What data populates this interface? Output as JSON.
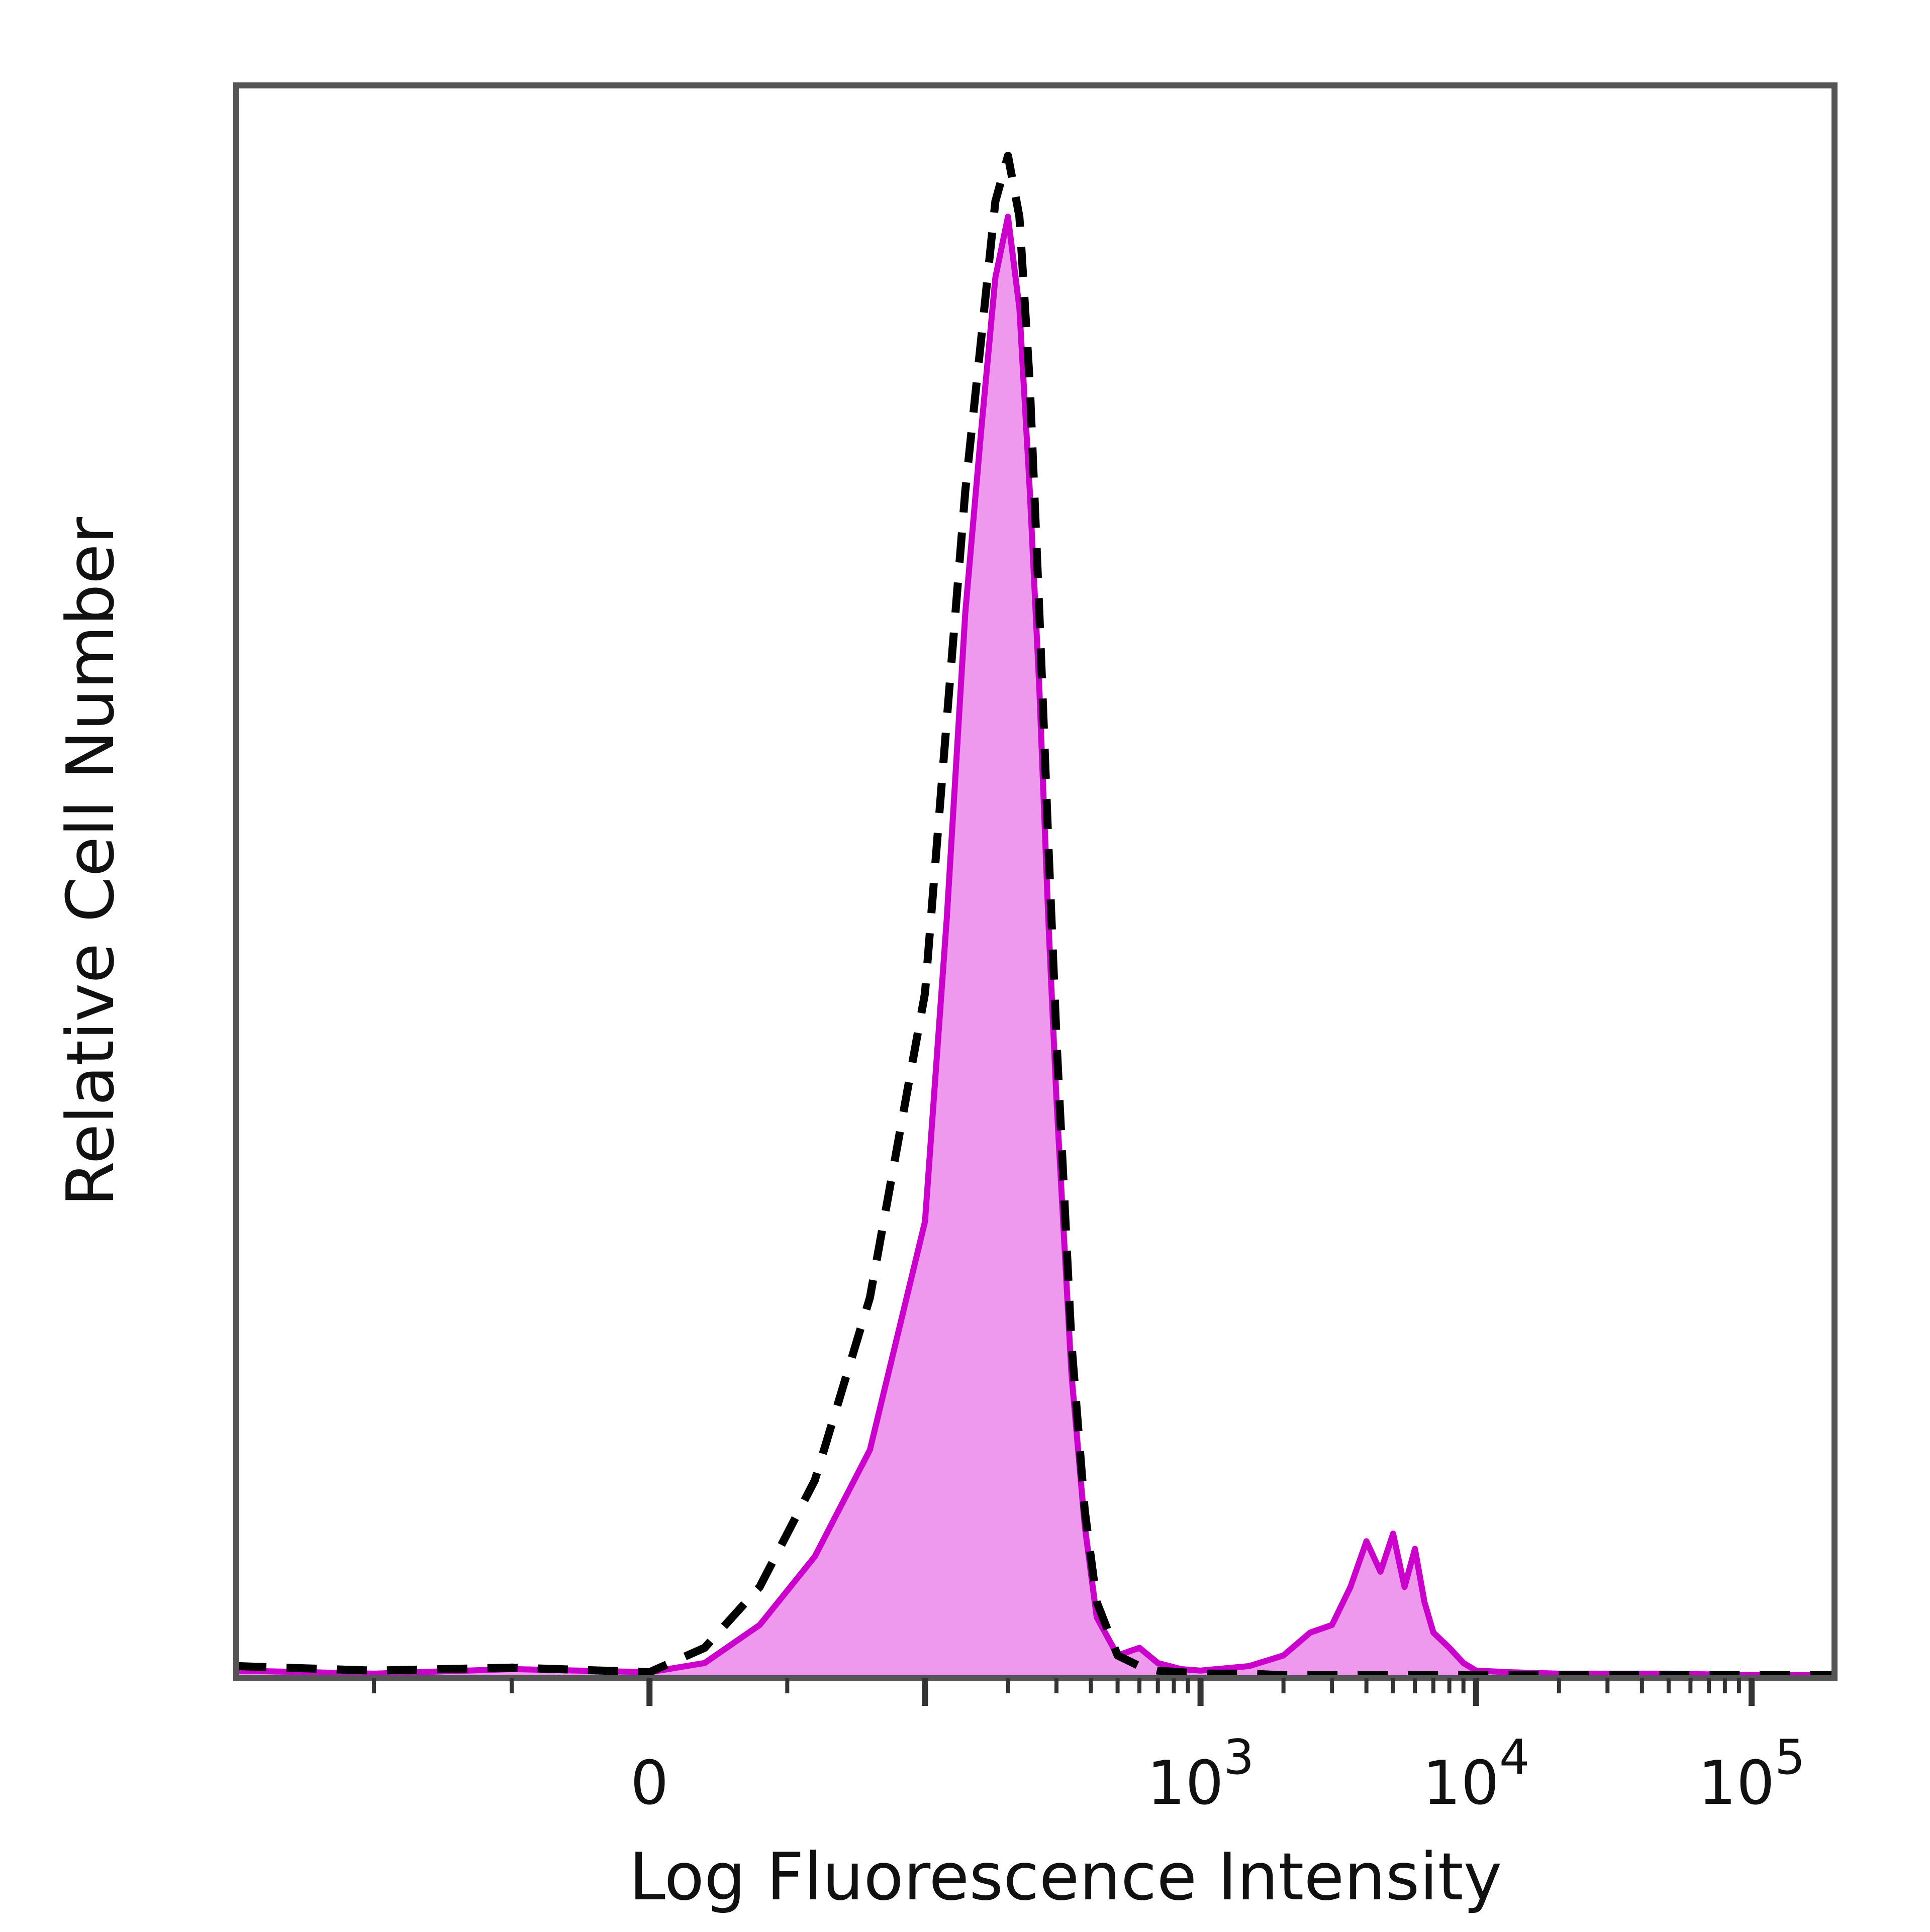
{
  "chart_data": {
    "type": "area",
    "title": "",
    "xlabel": "Log Fluorescence Intensity",
    "ylabel": "Relative Cell Number",
    "x_scale": "biexponential",
    "xlim": [
      -150,
      200000
    ],
    "ylim": [
      0,
      100
    ],
    "grid": false,
    "legend": "none",
    "x_ticks": [
      {
        "value": 0,
        "base": "0",
        "exp": ""
      },
      {
        "value": 1000,
        "base": "10",
        "exp": "3"
      },
      {
        "value": 10000,
        "base": "10",
        "exp": "4"
      },
      {
        "value": 100000,
        "base": "10",
        "exp": "5"
      }
    ],
    "series": [
      {
        "style": "filled-solid",
        "color": "#cc00cc",
        "fill": "#ee99ee",
        "x": [
          -150,
          -100,
          -50,
          0,
          20,
          40,
          60,
          80,
          100,
          120,
          140,
          160,
          180,
          200,
          220,
          240,
          260,
          280,
          300,
          340,
          380,
          420,
          500,
          600,
          700,
          850,
          1000,
          1500,
          2000,
          2500,
          3000,
          3500,
          4000,
          4500,
          5000,
          5500,
          6000,
          6500,
          7000,
          8000,
          9000,
          10000,
          13000,
          20000,
          50000,
          100000,
          200000
        ],
        "y": [
          0.5,
          0.3,
          0.6,
          0.4,
          1.0,
          3.5,
          8.0,
          15.0,
          30.0,
          50.0,
          70.0,
          82.0,
          92.0,
          96.0,
          90.0,
          78.0,
          65.0,
          50.0,
          38.0,
          20.0,
          10.0,
          4.0,
          1.5,
          2.0,
          1.0,
          0.6,
          0.5,
          0.8,
          1.5,
          3.0,
          3.5,
          6.0,
          9.0,
          7.0,
          9.5,
          6.0,
          8.5,
          5.0,
          3.0,
          2.0,
          1.0,
          0.5,
          0.4,
          0.3,
          0.3,
          0.2,
          0.2
        ]
      },
      {
        "style": "dashed",
        "color": "#000000",
        "x": [
          -150,
          -100,
          -50,
          0,
          20,
          40,
          60,
          80,
          100,
          120,
          140,
          160,
          180,
          200,
          220,
          240,
          260,
          280,
          300,
          340,
          380,
          420,
          500,
          600,
          700,
          850,
          1000,
          1500,
          2000,
          3000,
          5000,
          10000,
          50000,
          200000
        ],
        "y": [
          0.8,
          0.5,
          0.7,
          0.4,
          2.0,
          6.0,
          13.0,
          25.0,
          45.0,
          63.0,
          78.0,
          88.0,
          97.0,
          100.0,
          96.0,
          85.0,
          70.0,
          55.0,
          42.0,
          22.0,
          11.0,
          5.0,
          1.5,
          0.8,
          0.5,
          0.4,
          0.3,
          0.3,
          0.2,
          0.2,
          0.2,
          0.2,
          0.2,
          0.2
        ]
      }
    ]
  }
}
